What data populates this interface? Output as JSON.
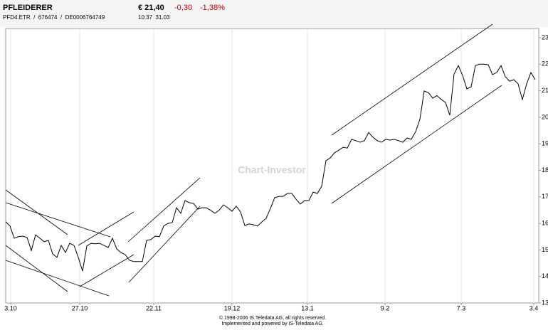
{
  "header": {
    "name": "PFLEIDERER",
    "price": "€ 21,40",
    "change": "-0,30",
    "change_pct": "-1,38%",
    "ids": "PFD4.ETR  /  676474  /  DE0006764749",
    "time": "10:37  31.03"
  },
  "watermark": "Chart-Investor",
  "footer": [
    "© 1998-2006 IS.Teledata AG, all rights reserved.",
    "Implemented and powered by IS-Teledata AG."
  ],
  "chart_data": {
    "type": "line",
    "color": "#000000",
    "grid": true,
    "x": [
      0,
      1,
      2,
      3,
      4,
      5,
      6,
      7,
      8,
      9,
      10,
      11,
      12,
      13,
      14,
      15,
      16,
      17,
      18,
      19,
      20,
      21,
      22,
      23,
      24,
      25,
      26,
      27,
      28,
      29,
      30,
      31,
      32,
      33,
      34,
      35,
      36,
      37,
      38,
      39,
      40,
      41,
      42,
      43,
      44,
      45,
      46,
      47,
      48,
      49,
      50,
      51,
      52,
      53,
      54,
      55,
      56,
      57,
      58,
      59,
      60,
      61,
      62,
      63,
      64,
      65,
      66,
      67,
      68,
      69,
      70,
      71,
      72,
      73,
      74,
      75,
      76,
      77,
      78,
      79,
      80,
      81,
      82,
      83,
      84,
      85,
      86,
      87,
      88,
      89,
      90,
      91,
      92,
      93,
      94,
      95,
      96,
      97,
      98,
      99,
      100,
      101,
      102,
      103,
      104,
      105,
      106,
      107,
      108,
      109,
      110,
      111,
      112,
      113,
      114,
      115,
      116,
      117,
      118,
      119,
      120,
      121,
      122,
      123,
      124
    ],
    "values": [
      16.06,
      15.9,
      15.44,
      15.5,
      15.52,
      15.47,
      14.98,
      15.57,
      15.44,
      15.31,
      15.36,
      14.85,
      14.72,
      15.17,
      14.9,
      15.25,
      15.17,
      14.72,
      14.2,
      15.15,
      15.25,
      15.23,
      15.25,
      15.17,
      15.09,
      15.44,
      15.04,
      14.9,
      14.82,
      14.61,
      14.56,
      14.56,
      14.56,
      15.36,
      15.39,
      15.52,
      15.5,
      15.9,
      16.0,
      16.03,
      16.59,
      16.38,
      16.86,
      16.78,
      16.75,
      16.54,
      16.59,
      16.59,
      16.49,
      16.38,
      16.5,
      16.7,
      16.59,
      16.46,
      16.65,
      16.43,
      15.92,
      15.98,
      15.95,
      15.9,
      16.06,
      16.19,
      16.57,
      16.97,
      17.02,
      17.02,
      17.13,
      17.13,
      16.91,
      16.73,
      16.86,
      16.86,
      17.18,
      17.13,
      17.4,
      18.36,
      18.47,
      18.66,
      18.76,
      18.87,
      18.84,
      19.17,
      19.12,
      19.06,
      19.12,
      19.43,
      19.25,
      19.12,
      19.06,
      19.17,
      19.14,
      19.17,
      19.12,
      19.06,
      19.22,
      19.17,
      19.46,
      19.92,
      20.99,
      20.93,
      20.72,
      20.82,
      20.67,
      20.56,
      20.08,
      21.63,
      21.95,
      21.58,
      21.07,
      21.15,
      21.95,
      22.0,
      22.0,
      21.98,
      21.61,
      21.69,
      21.95,
      21.53,
      21.36,
      21.42,
      21.26,
      20.67,
      21.26,
      21.69,
      21.42
    ],
    "xlim": [
      0,
      124.83
    ],
    "xticks": [
      {
        "value": 1.17,
        "label": "3.10"
      },
      {
        "value": 17.33,
        "label": "27.10"
      },
      {
        "value": 34.67,
        "label": "22.11"
      },
      {
        "value": 53,
        "label": "19.12"
      },
      {
        "value": 70.67,
        "label": "13.1"
      },
      {
        "value": 88.83,
        "label": "9.2"
      },
      {
        "value": 106.67,
        "label": "7.3"
      },
      {
        "value": 123.67,
        "label": "3.4"
      }
    ],
    "ylim": [
      13,
      23.35
    ],
    "yticks": [
      13,
      14,
      15,
      16,
      17,
      18,
      19,
      20,
      21,
      22,
      23
    ]
  }
}
